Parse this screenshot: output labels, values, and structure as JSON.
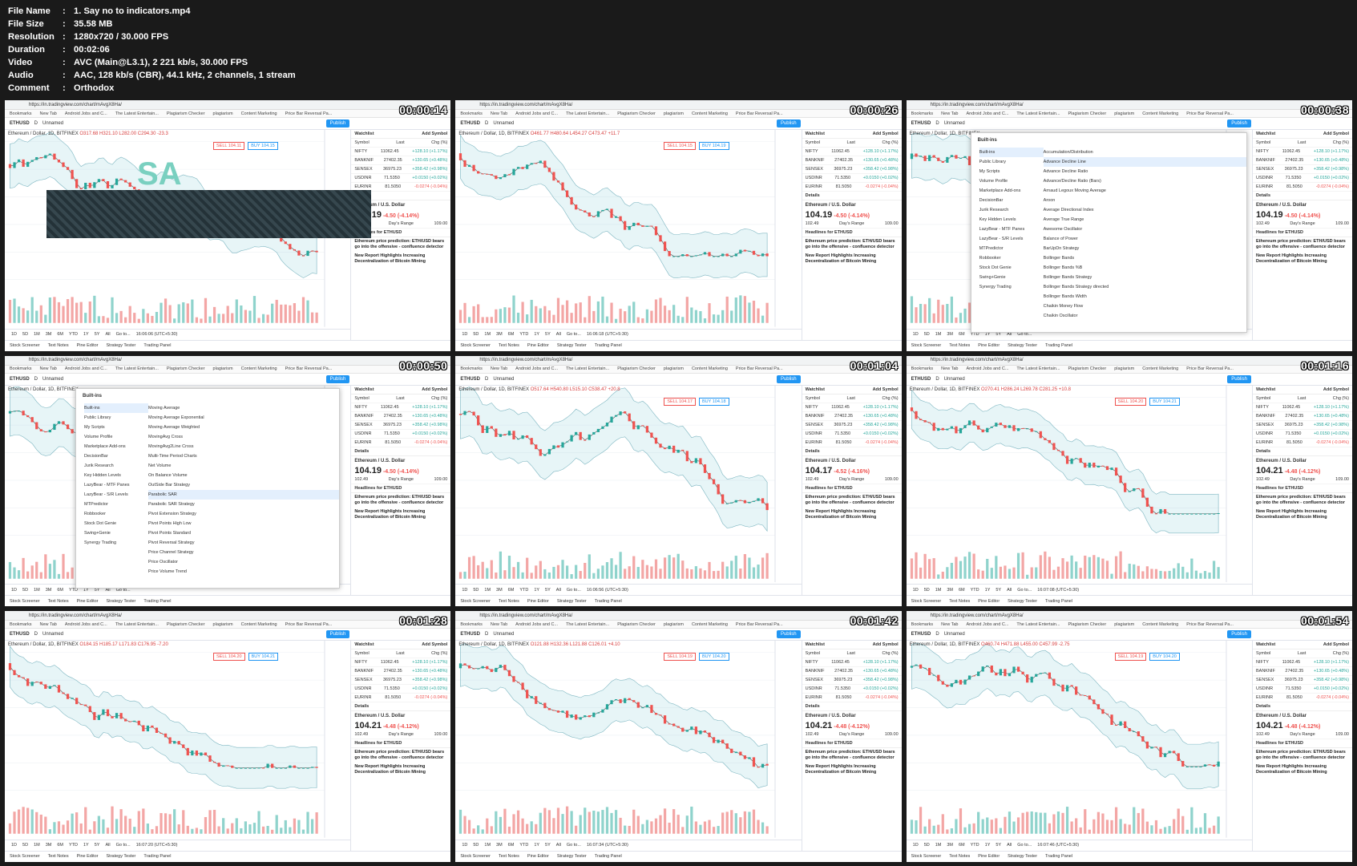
{
  "meta": [
    {
      "key": "File Name",
      "value": "1. Say no to indicators.mp4"
    },
    {
      "key": "File Size",
      "value": "35.58 MB"
    },
    {
      "key": "Resolution",
      "value": "1280x720 / 30.000 FPS"
    },
    {
      "key": "Duration",
      "value": "00:02:06"
    },
    {
      "key": "Video",
      "value": "AVC (Main@L3.1), 2 221 kb/s, 30.000 FPS"
    },
    {
      "key": "Audio",
      "value": "AAC, 128 kb/s (CBR), 44.1 kHz, 2 channels, 1 stream"
    },
    {
      "key": "Comment",
      "value": "Orthodox"
    }
  ],
  "browser": {
    "url": "https://in.tradingview.com/chart/mAvgX8Ha/",
    "bookmarks": [
      "Bookmarks",
      "New Tab",
      "Android Jobs and C...",
      "The Latest Entertain...",
      "Plagiarism Checker",
      "plagiarism",
      "Content Marketing",
      "Price Bar Reversal Pa..."
    ]
  },
  "tv": {
    "symbol": "ETHUSD",
    "interval": "D",
    "layout": "Unnamed",
    "publish": "Publish",
    "legend_title": "Ethereum / Dollar, 1D, BITFINEX",
    "sell": "SELL",
    "buy": "BUY",
    "timeframes": [
      "1D",
      "5D",
      "1M",
      "3M",
      "6M",
      "YTD",
      "1Y",
      "5Y",
      "All",
      "Go to..."
    ],
    "panels": [
      "Stock Screener",
      "Text Notes",
      "Pine Editor",
      "Strategy Tester",
      "Trading Panel"
    ],
    "watchlist_title": "Watchlist",
    "add_symbol": "Add Symbol",
    "watch_headers": [
      "Symbol",
      "Last",
      "Chg (%)"
    ],
    "watchlist": [
      {
        "s": "NIFTY",
        "l": "11062.45",
        "c": "+128.10 (+1.17%)"
      },
      {
        "s": "BANKNIF",
        "l": "27402.35",
        "c": "+130.65 (+0.48%)"
      },
      {
        "s": "SENSEX",
        "l": "36975.23",
        "c": "+358.42 (+0.98%)"
      },
      {
        "s": "USDINR",
        "l": "71.5350",
        "c": "+0.0150 (+0.02%)"
      },
      {
        "s": "EURINR",
        "l": "81.5050",
        "c": "-0.0274 (-0.04%)"
      }
    ],
    "details": "Details",
    "instrument": "Ethereum / U.S. Dollar",
    "price_low": "102.49",
    "days_range": "Day's Range",
    "price_high": "109.00",
    "headlines": "Headlines for ETHUSD",
    "news1": "Ethereum price prediction: ETH/USD bears go into the offensive - confluence detector",
    "news2": "New Report Highlights Increasing Decentralization of Bitcoin Mining"
  },
  "dialog": {
    "title": "Built-ins",
    "left": [
      "Built-ins",
      "Public Library",
      "My Scripts",
      "Volume Profile",
      "Marketplace Add-ons",
      "DecisionBar",
      "Jurik Research",
      "Key Hidden Levels",
      "LazyBear - MTF Panes",
      "LazyBear - S/R Levels",
      "MTPredictor",
      "Robbooker",
      "Stock Dot Genie",
      "Swing+Genie",
      "Synergy Trading"
    ],
    "right_a": [
      "Accumulation/Distribution",
      "Advance Decline Line",
      "Advance Decline Ratio",
      "Advance/Decline Ratio (Bars)",
      "Arnaud Legoux Moving Average",
      "Aroon",
      "Average Directional Index",
      "Average True Range",
      "Awesome Oscillator",
      "Balance of Power",
      "BarUpDn Strategy",
      "Bollinger Bands",
      "Bollinger Bands %B",
      "Bollinger Bands Strategy",
      "Bollinger Bands Strategy directed",
      "Bollinger Bands Width",
      "Chaikin Money Flow",
      "Chaikin Oscillator"
    ],
    "right_b": [
      "Moving Average",
      "Moving Average Exponential",
      "Moving Average Weighted",
      "MovingAvg Cross",
      "MovingAvg2Line Cross",
      "Multi-Time Period Charts",
      "Net Volume",
      "On Balance Volume",
      "OutSide Bar Strategy",
      "Parabolic SAR",
      "Parabolic SAR Strategy",
      "Pivot Extension Strategy",
      "Pivot Points High Low",
      "Pivot Points Standard",
      "Pivot Reversal Strategy",
      "Price Channel Strategy",
      "Price Oscillator",
      "Price Volume Trend"
    ]
  },
  "thumbs": [
    {
      "ts": "00:00:14",
      "price": "104.19",
      "chg": "-4.50 (-4.14%)",
      "ohlc": "O317.68 H321.10 L282.00 C294.30 -23.3",
      "sell": "104.11",
      "buy": "104.15",
      "time": "16:06:06 (UTC+5:30)",
      "logo": "SA",
      "seed": 1
    },
    {
      "ts": "00:00:26",
      "price": "104.19",
      "chg": "-4.50 (-4.14%)",
      "ohlc": "O461.77 H480.64 L454.27 C473.47 +11.7",
      "sell": "104.15",
      "buy": "104.19",
      "time": "16:06:18 (UTC+5:30)",
      "seed": 2
    },
    {
      "ts": "00:00:38",
      "price": "104.19",
      "chg": "-4.50 (-4.14%)",
      "ohlc": "",
      "sell": "",
      "buy": "",
      "time": "",
      "dialog": "a",
      "seed": 3
    },
    {
      "ts": "00:00:50",
      "price": "104.19",
      "chg": "-4.50 (-4.14%)",
      "ohlc": "",
      "sell": "",
      "buy": "",
      "time": "",
      "dialog": "b",
      "seed": 4
    },
    {
      "ts": "00:01:04",
      "price": "104.17",
      "chg": "-4.52 (-4.16%)",
      "ohlc": "O517.64 H540.80 L515.10 C538.47 +20.8",
      "sell": "104.17",
      "buy": "104.18",
      "time": "16:06:56 (UTC+5:30)",
      "seed": 5
    },
    {
      "ts": "00:01:16",
      "price": "104.21",
      "chg": "-4.48 (-4.12%)",
      "ohlc": "O270.41 H286.24 L269.78 C281.25 +10.8",
      "sell": "104.20",
      "buy": "104.21",
      "time": "16:07:08 (UTC+5:30)",
      "seed": 6
    },
    {
      "ts": "00:01:28",
      "price": "104.21",
      "chg": "-4.48 (-4.12%)",
      "ohlc": "O184.15 H185.17 L171.83 C176.95 -7.20",
      "sell": "104.20",
      "buy": "104.21",
      "time": "16:07:20 (UTC+5:30)",
      "seed": 7
    },
    {
      "ts": "00:01:42",
      "price": "104.21",
      "chg": "-4.48 (-4.12%)",
      "ohlc": "O121.88 H132.36 L121.88 C126.01 +4.10",
      "sell": "104.19",
      "buy": "104.20",
      "time": "16:07:34 (UTC+5:30)",
      "seed": 8
    },
    {
      "ts": "00:01:54",
      "price": "104.21",
      "chg": "-4.48 (-4.12%)",
      "ohlc": "O460.74 H471.88 L455.00 C457.99 -2.75",
      "sell": "104.19",
      "buy": "104.20",
      "time": "16:07:46 (UTC+5:30)",
      "seed": 9
    }
  ]
}
